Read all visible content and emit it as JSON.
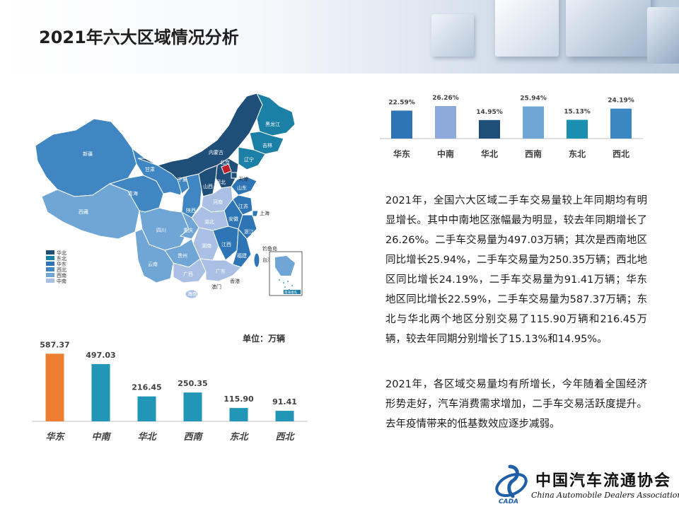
{
  "header": {
    "title": "2021年六大区域情况分析"
  },
  "map": {
    "legend": [
      {
        "label": "华北",
        "color": "#1f4e79"
      },
      {
        "label": "东北",
        "color": "#1b7fa6"
      },
      {
        "label": "华东",
        "color": "#2e75b6"
      },
      {
        "label": "西北",
        "color": "#3f86c2"
      },
      {
        "label": "西南",
        "color": "#6fa6d6"
      },
      {
        "label": "中南",
        "color": "#a9c0e4"
      }
    ],
    "labels": {
      "heilongjiang": "黑龙江",
      "jilin": "吉林",
      "liaoning": "辽宁",
      "neimenggu": "内蒙古",
      "xinjiang": "新疆",
      "xizang": "西藏",
      "qinghai": "青海",
      "gansu": "甘肃",
      "ningxia": "宁夏",
      "shaanxi": "陕西",
      "shanxi": "山西",
      "hebei": "河北",
      "beijing": "北京",
      "tianjin": "天津",
      "shandong": "山东",
      "henan": "河南",
      "jiangsu": "江苏",
      "anhui": "安徽",
      "shanghai": "上海",
      "zhejiang": "浙江",
      "hubei": "湖北",
      "sichuan": "四川",
      "chongqing": "重庆",
      "hunan": "湖南",
      "jiangxi": "江西",
      "fujian": "福建",
      "guizhou": "贵州",
      "yunnan": "云南",
      "guangxi": "广西",
      "guangdong": "广东",
      "hainan": "海南",
      "taiwan": "台湾",
      "xianggang": "香港",
      "aomen": "澳门",
      "nanhai": "南海诸岛",
      "diaoyu": "钓鱼岛"
    }
  },
  "bottom_chart_title": {
    "unit": "单位：万辆"
  },
  "chart_data": [
    {
      "type": "bar",
      "categories": [
        "华东",
        "中南",
        "华北",
        "西南",
        "东北",
        "西北"
      ],
      "values": [
        587.37,
        497.03,
        216.45,
        250.35,
        115.9,
        91.41
      ],
      "value_labels": [
        "587.37",
        "497.03",
        "216.45",
        "250.35",
        "115.90",
        "91.41"
      ],
      "ylabel": "单位：万辆",
      "ylim": [
        0,
        620
      ],
      "colors": [
        "#ed7d31",
        "#2196b6",
        "#2196b6",
        "#2196b6",
        "#2196b6",
        "#2196b6"
      ],
      "grid": false
    },
    {
      "type": "bar",
      "categories": [
        "华东",
        "中南",
        "华北",
        "西南",
        "东北",
        "西北"
      ],
      "values": [
        22.59,
        26.26,
        14.95,
        25.94,
        15.13,
        24.19
      ],
      "value_labels": [
        "22.59%",
        "26.26%",
        "14.95%",
        "25.94%",
        "15.13%",
        "24.19%"
      ],
      "ylim": [
        0,
        26.26
      ],
      "colors": [
        "#2e75b6",
        "#8eaadb",
        "#1f4e79",
        "#6fa6d6",
        "#1b8fb0",
        "#3a87c4"
      ],
      "grid": false
    }
  ],
  "text": {
    "para1": "2021年，全国六大区域二手车交易量较上年同期均有明显增长。其中中南地区涨幅最为明显，较去年同期增长了26.26%。二手车交易量为497.03万辆；其次是西南地区同比增长25.94%，二手车交易量为250.35万辆；西北地区同比增长24.19%，二手车交易量为91.41万辆；华东地区同比增长22.59%，二手车交易量为587.37万辆；东北与华北两个地区分别交易了115.90万辆和216.45万辆，较去年同期分别增长了15.13%和14.95%。",
    "para2": "2021年，各区域交易量均有所增长，今年随着全国经济形势走好，汽车消费需求增加，二手车交易活跃度提升。去年疫情带来的低基数效应逐步减弱。"
  },
  "logo": {
    "cn": "中国汽车流通协会",
    "en": "China Automobile Dealers Association",
    "mark": "CADA"
  }
}
